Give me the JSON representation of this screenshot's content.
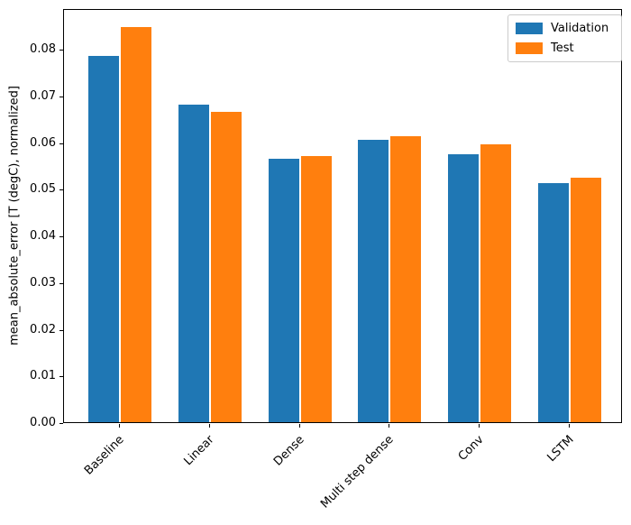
{
  "figure": {
    "background": "#ffffff"
  },
  "chart_data": {
    "type": "bar",
    "title": "",
    "categories": [
      "Baseline",
      "Linear",
      "Dense",
      "Multi step dense",
      "Conv",
      "LSTM"
    ],
    "series": [
      {
        "name": "Validation",
        "color": "#1f77b4",
        "values": [
          0.0785,
          0.068,
          0.0564,
          0.0605,
          0.0574,
          0.0513
        ]
      },
      {
        "name": "Test",
        "color": "#ff7f0e",
        "values": [
          0.0846,
          0.0664,
          0.0571,
          0.0612,
          0.0595,
          0.0524
        ]
      }
    ],
    "xlabel": "",
    "ylabel": "mean_absolute_error [T (degC), normalized]",
    "yticks": [
      "0.00",
      "0.01",
      "0.02",
      "0.03",
      "0.04",
      "0.05",
      "0.06",
      "0.07",
      "0.08"
    ],
    "ylim": [
      0,
      0.0887
    ],
    "xlim": [
      -0.62,
      5.59
    ],
    "grid": false,
    "legend": {
      "position": "upper right",
      "border_color": "#cccccc"
    }
  }
}
